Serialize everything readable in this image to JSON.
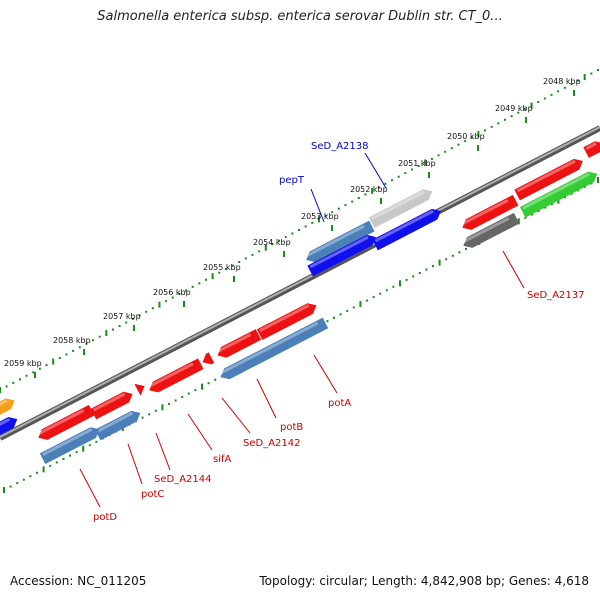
{
  "title": "Salmonella enterica subsp. enterica serovar Dublin str. CT_0...",
  "footer": {
    "accession": "Accession: NC_011205",
    "summary": "Topology: circular; Length: 4,842,908 bp; Genes: 4,618"
  },
  "ticks": [
    {
      "label": "2048 kbp"
    },
    {
      "label": "2049 kbp"
    },
    {
      "label": "2050 kbp"
    },
    {
      "label": "2051 kbp"
    },
    {
      "label": "2052 kbp"
    },
    {
      "label": "2053 kbp"
    },
    {
      "label": "2054 kbp"
    },
    {
      "label": "2055 kbp"
    },
    {
      "label": "2056 kbp"
    },
    {
      "label": "2057 kbp"
    },
    {
      "label": "2058 kbp"
    },
    {
      "label": "2059 kbp"
    }
  ],
  "gene_labels": [
    {
      "text": "SeD_A2138",
      "color": "#0000cc"
    },
    {
      "text": "pepT",
      "color": "#0000cc"
    },
    {
      "text": "SeD_A2137",
      "color": "#cc0000"
    },
    {
      "text": "potA",
      "color": "#cc0000"
    },
    {
      "text": "potB",
      "color": "#cc0000"
    },
    {
      "text": "SeD_A2142",
      "color": "#cc0000"
    },
    {
      "text": "sifA",
      "color": "#cc0000"
    },
    {
      "text": "SeD_A2144",
      "color": "#cc0000"
    },
    {
      "text": "potC",
      "color": "#cc0000"
    },
    {
      "text": "potD",
      "color": "#cc0000"
    }
  ],
  "colors": {
    "backbone": "#8a8a8a",
    "tick_green": "#1a8a1a",
    "gene_red": "#ee1111",
    "gene_blue": "#1010ee",
    "gene_steelblue": "#4a7fb8",
    "gene_lightgray": "#c8c8c8",
    "gene_darkgray": "#666666",
    "gene_green": "#33cc33",
    "gene_orange": "#f5a01a"
  }
}
